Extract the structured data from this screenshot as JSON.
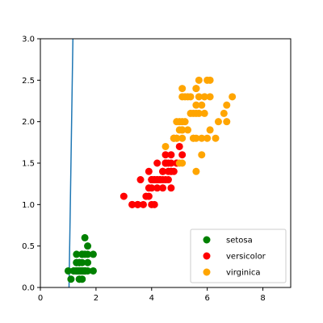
{
  "chart_data": {
    "type": "scatter",
    "title": "",
    "xlabel": "",
    "ylabel": "",
    "xlim": [
      0,
      9
    ],
    "ylim": [
      0,
      3
    ],
    "xticks": [
      0,
      2,
      4,
      6,
      8
    ],
    "yticks": [
      0.0,
      0.5,
      1.0,
      1.5,
      2.0,
      2.5,
      3.0
    ],
    "xtick_labels": [
      "0",
      "2",
      "4",
      "6",
      "8"
    ],
    "ytick_labels": [
      "0.0",
      "0.5",
      "1.0",
      "1.5",
      "2.0",
      "2.5",
      "3.0"
    ],
    "grid": false,
    "legend_position": "bottom-right",
    "line": {
      "color": "#1f77b4",
      "points": [
        [
          1.03,
          0.0
        ],
        [
          1.17,
          3.0
        ]
      ]
    },
    "series": [
      {
        "name": "setosa",
        "color": "#008000",
        "points": [
          [
            1.4,
            0.2
          ],
          [
            1.4,
            0.2
          ],
          [
            1.3,
            0.2
          ],
          [
            1.5,
            0.2
          ],
          [
            1.4,
            0.2
          ],
          [
            1.7,
            0.4
          ],
          [
            1.4,
            0.3
          ],
          [
            1.5,
            0.2
          ],
          [
            1.4,
            0.2
          ],
          [
            1.5,
            0.1
          ],
          [
            1.5,
            0.2
          ],
          [
            1.6,
            0.2
          ],
          [
            1.4,
            0.1
          ],
          [
            1.1,
            0.1
          ],
          [
            1.2,
            0.2
          ],
          [
            1.5,
            0.4
          ],
          [
            1.3,
            0.4
          ],
          [
            1.4,
            0.3
          ],
          [
            1.7,
            0.3
          ],
          [
            1.5,
            0.3
          ],
          [
            1.7,
            0.2
          ],
          [
            1.5,
            0.4
          ],
          [
            1.0,
            0.2
          ],
          [
            1.7,
            0.5
          ],
          [
            1.9,
            0.2
          ],
          [
            1.6,
            0.2
          ],
          [
            1.6,
            0.4
          ],
          [
            1.5,
            0.2
          ],
          [
            1.4,
            0.2
          ],
          [
            1.6,
            0.2
          ],
          [
            1.6,
            0.2
          ],
          [
            1.5,
            0.4
          ],
          [
            1.5,
            0.1
          ],
          [
            1.4,
            0.2
          ],
          [
            1.5,
            0.2
          ],
          [
            1.2,
            0.2
          ],
          [
            1.3,
            0.2
          ],
          [
            1.4,
            0.1
          ],
          [
            1.3,
            0.2
          ],
          [
            1.5,
            0.2
          ],
          [
            1.3,
            0.3
          ],
          [
            1.3,
            0.3
          ],
          [
            1.3,
            0.2
          ],
          [
            1.6,
            0.6
          ],
          [
            1.9,
            0.4
          ],
          [
            1.4,
            0.3
          ],
          [
            1.6,
            0.2
          ],
          [
            1.4,
            0.2
          ],
          [
            1.5,
            0.2
          ],
          [
            1.4,
            0.2
          ]
        ]
      },
      {
        "name": "versicolor",
        "color": "#ff0000",
        "points": [
          [
            4.7,
            1.4
          ],
          [
            4.5,
            1.5
          ],
          [
            4.9,
            1.5
          ],
          [
            4.0,
            1.3
          ],
          [
            4.6,
            1.5
          ],
          [
            4.5,
            1.3
          ],
          [
            4.7,
            1.6
          ],
          [
            3.3,
            1.0
          ],
          [
            4.6,
            1.3
          ],
          [
            3.9,
            1.4
          ],
          [
            3.5,
            1.0
          ],
          [
            4.2,
            1.5
          ],
          [
            4.0,
            1.0
          ],
          [
            4.7,
            1.4
          ],
          [
            3.6,
            1.3
          ],
          [
            4.4,
            1.4
          ],
          [
            4.5,
            1.5
          ],
          [
            4.1,
            1.0
          ],
          [
            4.5,
            1.5
          ],
          [
            3.9,
            1.1
          ],
          [
            4.8,
            1.8
          ],
          [
            4.0,
            1.3
          ],
          [
            4.9,
            1.5
          ],
          [
            4.7,
            1.2
          ],
          [
            4.3,
            1.3
          ],
          [
            4.4,
            1.4
          ],
          [
            4.8,
            1.4
          ],
          [
            5.0,
            1.7
          ],
          [
            4.5,
            1.5
          ],
          [
            3.5,
            1.0
          ],
          [
            3.8,
            1.1
          ],
          [
            3.7,
            1.0
          ],
          [
            3.9,
            1.2
          ],
          [
            5.1,
            1.6
          ],
          [
            4.5,
            1.5
          ],
          [
            4.5,
            1.6
          ],
          [
            4.7,
            1.5
          ],
          [
            4.4,
            1.3
          ],
          [
            4.1,
            1.3
          ],
          [
            4.0,
            1.3
          ],
          [
            4.4,
            1.2
          ],
          [
            4.6,
            1.4
          ],
          [
            4.0,
            1.2
          ],
          [
            3.3,
            1.0
          ],
          [
            4.2,
            1.3
          ],
          [
            4.2,
            1.2
          ],
          [
            4.2,
            1.3
          ],
          [
            4.3,
            1.3
          ],
          [
            3.0,
            1.1
          ],
          [
            4.1,
            1.3
          ]
        ]
      },
      {
        "name": "virginica",
        "color": "#ffa500",
        "points": [
          [
            6.0,
            2.5
          ],
          [
            5.1,
            1.9
          ],
          [
            5.9,
            2.1
          ],
          [
            5.6,
            1.8
          ],
          [
            5.8,
            2.2
          ],
          [
            6.6,
            2.1
          ],
          [
            4.5,
            1.7
          ],
          [
            6.3,
            1.8
          ],
          [
            5.8,
            1.8
          ],
          [
            6.1,
            2.5
          ],
          [
            5.1,
            2.0
          ],
          [
            5.3,
            1.9
          ],
          [
            5.5,
            2.1
          ],
          [
            5.0,
            2.0
          ],
          [
            5.1,
            2.4
          ],
          [
            5.3,
            2.3
          ],
          [
            5.5,
            1.8
          ],
          [
            6.7,
            2.2
          ],
          [
            6.9,
            2.3
          ],
          [
            5.0,
            1.5
          ],
          [
            5.7,
            2.3
          ],
          [
            4.9,
            2.0
          ],
          [
            6.7,
            2.0
          ],
          [
            4.9,
            1.8
          ],
          [
            5.7,
            2.1
          ],
          [
            6.0,
            1.8
          ],
          [
            4.8,
            1.8
          ],
          [
            4.9,
            1.8
          ],
          [
            5.6,
            2.1
          ],
          [
            5.8,
            1.6
          ],
          [
            6.1,
            1.9
          ],
          [
            6.4,
            2.0
          ],
          [
            5.6,
            2.2
          ],
          [
            5.1,
            1.5
          ],
          [
            5.6,
            1.4
          ],
          [
            6.1,
            2.3
          ],
          [
            5.6,
            2.4
          ],
          [
            5.5,
            1.8
          ],
          [
            4.8,
            1.8
          ],
          [
            5.4,
            2.1
          ],
          [
            5.6,
            2.4
          ],
          [
            5.1,
            2.3
          ],
          [
            5.1,
            1.9
          ],
          [
            5.9,
            2.3
          ],
          [
            5.7,
            2.5
          ],
          [
            5.2,
            2.3
          ],
          [
            5.0,
            1.9
          ],
          [
            5.2,
            2.0
          ],
          [
            5.4,
            2.3
          ],
          [
            5.1,
            1.8
          ]
        ]
      }
    ]
  }
}
